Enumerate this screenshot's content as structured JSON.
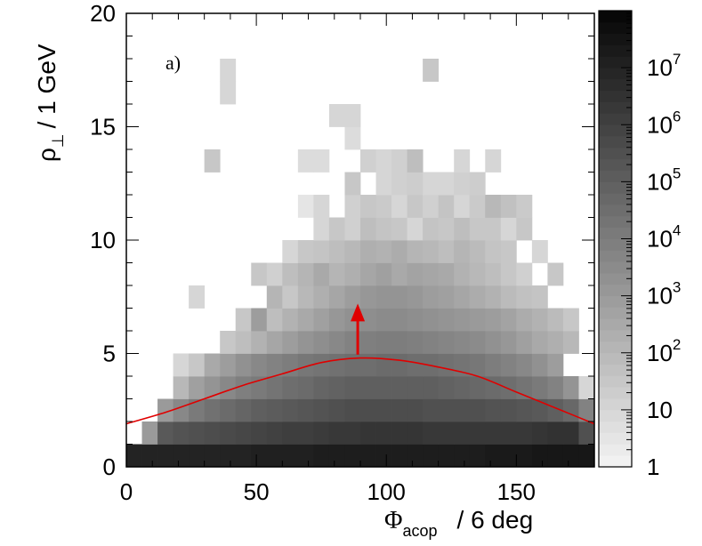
{
  "chart_data": {
    "type": "heatmap",
    "title": "",
    "panel_label": "a)",
    "xlabel": {
      "symbol": "Φ",
      "subscript": "acop",
      "unit": "/ 6 deg"
    },
    "ylabel": {
      "symbol": "ρ",
      "subscript": "⊥",
      "unit": "/ 1 GeV"
    },
    "xlim": [
      0,
      180
    ],
    "ylim": [
      0,
      20
    ],
    "x_ticks": [
      "0",
      "50",
      "100",
      "150"
    ],
    "y_ticks": [
      "0",
      "5",
      "10",
      "15",
      "20"
    ],
    "x_bin_width": 6,
    "y_bin_width": 1,
    "z_scale": "log",
    "z_range": [
      1,
      100000000
    ],
    "colorbar_ticks": [
      {
        "base": "1",
        "exp": ""
      },
      {
        "base": "10",
        "exp": ""
      },
      {
        "base": "10",
        "exp": "2"
      },
      {
        "base": "10",
        "exp": "3"
      },
      {
        "base": "10",
        "exp": "4"
      },
      {
        "base": "10",
        "exp": "5"
      },
      {
        "base": "10",
        "exp": "6"
      },
      {
        "base": "10",
        "exp": "7"
      }
    ],
    "colormap": {
      "low": "#f4f4f4",
      "high": "#050505"
    },
    "log10_counts_by_row": [
      {
        "y": 0,
        "values": [
          7.0,
          7.0,
          7.0,
          7.0,
          7.0,
          7.0,
          7.0,
          7.0,
          7.1,
          7.1,
          7.1,
          7.1,
          7.2,
          7.2,
          7.2,
          7.2,
          7.2,
          7.2,
          7.2,
          7.2,
          7.2,
          7.2,
          7.2,
          7.3,
          7.3,
          7.3,
          7.4,
          7.4,
          7.4,
          7.4
        ]
      },
      {
        "y": 1,
        "values": [
          null,
          3.0,
          5.2,
          5.4,
          5.5,
          5.6,
          5.7,
          5.8,
          5.9,
          6.0,
          6.1,
          6.1,
          6.2,
          6.3,
          6.3,
          6.4,
          6.4,
          6.4,
          6.4,
          6.3,
          6.3,
          6.3,
          6.3,
          6.3,
          6.3,
          6.3,
          6.4,
          6.5,
          6.5,
          5.5
        ]
      },
      {
        "y": 2,
        "values": [
          null,
          null,
          3.0,
          3.6,
          4.1,
          4.4,
          4.6,
          4.8,
          5.0,
          5.1,
          5.2,
          5.3,
          5.4,
          5.5,
          5.6,
          5.6,
          5.6,
          5.6,
          5.6,
          5.5,
          5.5,
          5.5,
          5.5,
          5.4,
          5.4,
          5.3,
          5.2,
          5.0,
          4.7,
          3.8
        ]
      },
      {
        "y": 3,
        "values": [
          null,
          null,
          null,
          2.0,
          2.8,
          3.2,
          3.6,
          3.9,
          4.1,
          4.3,
          4.5,
          4.6,
          4.8,
          4.9,
          5.0,
          5.0,
          5.0,
          5.0,
          5.0,
          5.0,
          4.9,
          4.8,
          4.7,
          4.6,
          4.5,
          4.3,
          4.1,
          3.8,
          3.2,
          1.0
        ]
      },
      {
        "y": 4,
        "values": [
          null,
          null,
          null,
          1.0,
          1.5,
          2.5,
          2.9,
          3.3,
          3.6,
          3.8,
          4.0,
          4.2,
          4.3,
          4.4,
          4.5,
          4.5,
          4.6,
          4.6,
          4.5,
          4.5,
          4.4,
          4.3,
          4.2,
          4.0,
          3.8,
          3.6,
          3.3,
          2.9,
          null,
          null
        ]
      },
      {
        "y": 5,
        "values": [
          null,
          null,
          null,
          null,
          null,
          null,
          1.5,
          1.8,
          2.2,
          2.6,
          2.9,
          3.2,
          3.4,
          3.6,
          3.8,
          3.9,
          4.0,
          4.0,
          3.9,
          3.8,
          3.7,
          3.6,
          3.5,
          3.3,
          3.1,
          2.8,
          2.5,
          2.3,
          2.0,
          null
        ]
      },
      {
        "y": 6,
        "values": [
          null,
          null,
          null,
          null,
          null,
          null,
          null,
          1.5,
          2.9,
          1.8,
          2.2,
          2.5,
          2.8,
          3.1,
          3.3,
          3.4,
          3.5,
          3.5,
          3.4,
          3.3,
          3.2,
          3.1,
          3.0,
          2.9,
          2.7,
          2.4,
          2.2,
          1.9,
          1.5,
          null
        ]
      },
      {
        "y": 7,
        "values": [
          null,
          null,
          null,
          null,
          1.0,
          null,
          null,
          null,
          null,
          2.1,
          1.5,
          2.0,
          2.3,
          2.6,
          2.9,
          3.1,
          3.2,
          3.2,
          3.1,
          2.9,
          2.8,
          2.6,
          2.4,
          2.2,
          1.9,
          1.7,
          1.6,
          null,
          null,
          null
        ]
      },
      {
        "y": 8,
        "values": [
          null,
          null,
          null,
          null,
          null,
          null,
          null,
          null,
          1.5,
          1.2,
          1.8,
          2.1,
          2.5,
          2.1,
          2.3,
          2.6,
          2.8,
          2.5,
          2.7,
          2.6,
          2.5,
          2.2,
          2.0,
          1.8,
          1.5,
          1.2,
          null,
          1.5,
          null,
          null
        ]
      },
      {
        "y": 9,
        "values": [
          null,
          null,
          null,
          null,
          null,
          null,
          null,
          null,
          null,
          null,
          1.0,
          1.5,
          1.6,
          1.8,
          2.0,
          2.3,
          2.2,
          2.4,
          2.1,
          2.0,
          1.8,
          2.1,
          1.9,
          1.6,
          1.5,
          null,
          1.0,
          null,
          null,
          null
        ]
      },
      {
        "y": 10,
        "values": [
          null,
          null,
          null,
          null,
          null,
          null,
          null,
          null,
          null,
          null,
          null,
          null,
          1.0,
          1.5,
          1.2,
          1.8,
          1.6,
          1.5,
          1.0,
          1.6,
          1.5,
          1.8,
          1.5,
          1.5,
          1.0,
          1.5,
          null,
          null,
          null,
          null
        ]
      },
      {
        "y": 11,
        "values": [
          null,
          null,
          null,
          null,
          null,
          null,
          null,
          null,
          null,
          null,
          null,
          0.5,
          1.0,
          null,
          1.2,
          1.5,
          1.4,
          1.0,
          1.5,
          1.2,
          1.6,
          1.0,
          1.4,
          2.0,
          1.7,
          1.4,
          null,
          null,
          null,
          null
        ]
      },
      {
        "y": 12,
        "values": [
          null,
          null,
          null,
          null,
          null,
          null,
          null,
          null,
          null,
          null,
          null,
          null,
          null,
          null,
          1.5,
          null,
          1.0,
          1.2,
          1.3,
          1.0,
          1.0,
          1.2,
          1.3,
          null,
          null,
          null,
          null,
          null,
          null,
          null
        ]
      },
      {
        "y": 13,
        "values": [
          null,
          null,
          null,
          null,
          null,
          1.5,
          null,
          null,
          null,
          null,
          null,
          0.8,
          0.8,
          null,
          null,
          1.2,
          1.0,
          1.2,
          1.8,
          null,
          null,
          1.0,
          null,
          1.0,
          null,
          null,
          null,
          null,
          null,
          null
        ]
      },
      {
        "y": 14,
        "values": [
          null,
          null,
          null,
          null,
          null,
          null,
          null,
          null,
          null,
          null,
          null,
          null,
          null,
          null,
          0.8,
          null,
          null,
          null,
          null,
          null,
          null,
          null,
          null,
          null,
          null,
          null,
          null,
          null,
          null,
          null
        ]
      },
      {
        "y": 15,
        "values": [
          null,
          null,
          null,
          null,
          null,
          null,
          null,
          null,
          null,
          null,
          null,
          null,
          null,
          1.0,
          1.0,
          null,
          null,
          null,
          null,
          null,
          null,
          null,
          null,
          null,
          null,
          null,
          null,
          null,
          null,
          null
        ]
      },
      {
        "y": 16,
        "values": [
          null,
          null,
          null,
          null,
          null,
          null,
          1.0,
          null,
          null,
          null,
          null,
          null,
          null,
          null,
          null,
          null,
          null,
          null,
          null,
          null,
          null,
          null,
          null,
          null,
          null,
          null,
          null,
          null,
          null,
          null
        ]
      },
      {
        "y": 17,
        "values": [
          null,
          null,
          null,
          null,
          null,
          null,
          1.0,
          null,
          null,
          null,
          null,
          null,
          null,
          null,
          null,
          null,
          null,
          null,
          null,
          1.5,
          null,
          null,
          null,
          null,
          null,
          null,
          null,
          null,
          null,
          null
        ]
      }
    ],
    "curve": {
      "color": "#e00000",
      "x": [
        0,
        15,
        30,
        45,
        60,
        75,
        90,
        105,
        120,
        135,
        150,
        165,
        180
      ],
      "y": [
        1.9,
        2.4,
        3.0,
        3.6,
        4.1,
        4.6,
        4.8,
        4.7,
        4.4,
        4.0,
        3.3,
        2.6,
        1.9
      ]
    },
    "arrow": {
      "color": "#e00000",
      "x": 89,
      "y_from": 4.95,
      "y_to": 7.2
    }
  }
}
